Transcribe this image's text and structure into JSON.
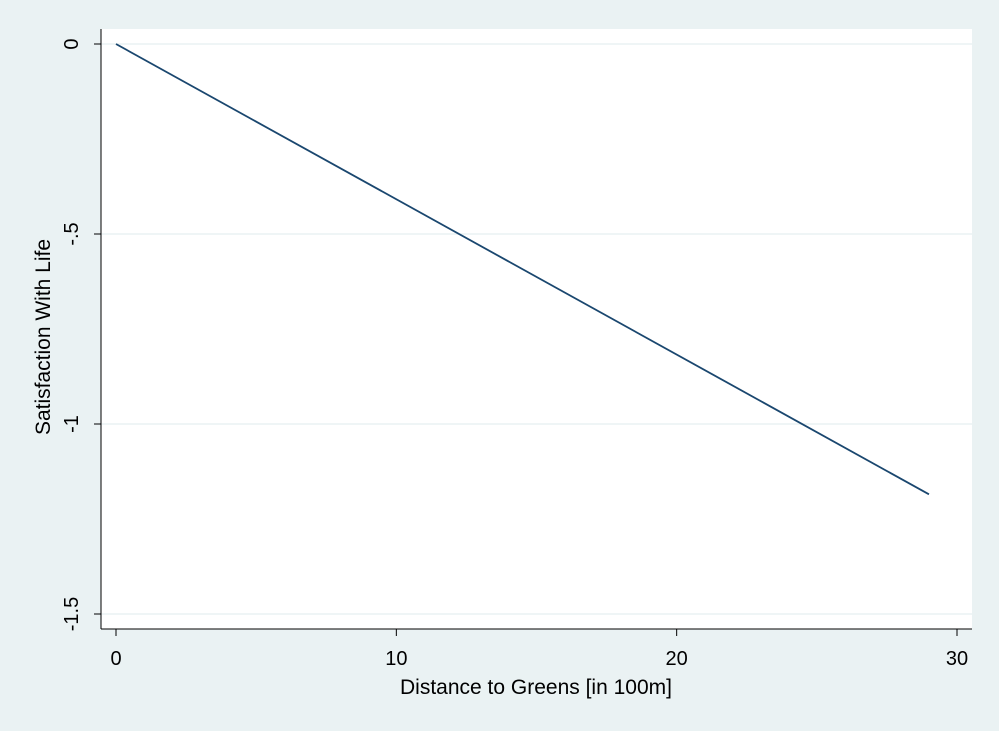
{
  "chart_data": {
    "type": "line",
    "title": "",
    "xlabel": "Distance to Greens [in 100m]",
    "ylabel": "Satisfaction With Life",
    "xlim": [
      0,
      30
    ],
    "ylim": [
      -1.5,
      0
    ],
    "x_ticks": [
      0,
      10,
      20,
      30
    ],
    "x_tick_labels": [
      "0",
      "10",
      "20",
      "30"
    ],
    "y_ticks": [
      0,
      -0.5,
      -1,
      -1.5
    ],
    "y_tick_labels": [
      "0",
      "-.5",
      "-1",
      "-1.5"
    ],
    "grid": "horizontal",
    "legend": "none",
    "series": [
      {
        "x": [
          0,
          29
        ],
        "y": [
          0,
          -1.185
        ],
        "color": "#1a476f"
      }
    ],
    "colors": {
      "background": "#eaf2f3",
      "plot_area": "#ffffff",
      "gridline": "#eaf2f3",
      "axis": "#000000"
    }
  }
}
